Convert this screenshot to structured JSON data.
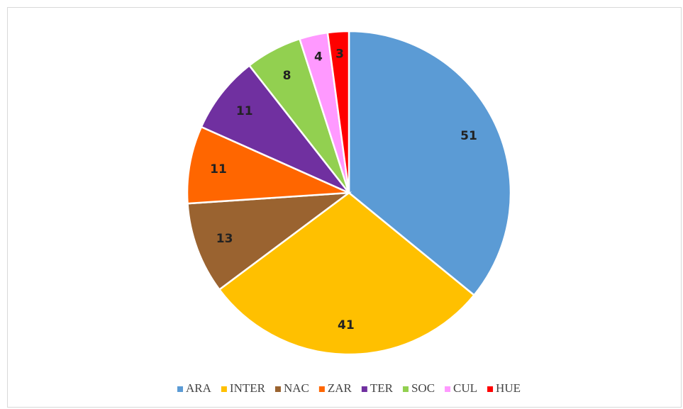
{
  "chart_data": {
    "type": "pie",
    "categories": [
      "ARA",
      "INTER",
      "NAC",
      "ZAR",
      "TER",
      "SOC",
      "CUL",
      "HUE"
    ],
    "values": [
      51,
      41,
      13,
      11,
      11,
      8,
      4,
      3
    ],
    "colors": [
      "#5b9bd5",
      "#ffc000",
      "#9a6330",
      "#ff6600",
      "#7030a0",
      "#92d050",
      "#ff99ff",
      "#ff0000"
    ],
    "legend": "bottom"
  }
}
